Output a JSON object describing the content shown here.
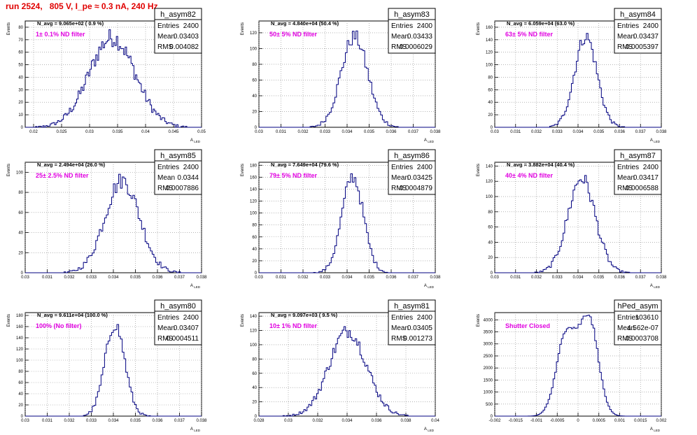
{
  "title": "run 2524,   805 V, I_pe ≈ 0.3 nA, 240 Hz",
  "chart_data": [
    {
      "type": "bar",
      "name": "h_asym82",
      "navg": "N_avg = 9.065e+02 ( 0.9 %)",
      "filter": "1± 0.1% ND filter",
      "stats": {
        "Entries": "2400",
        "Mean": "0.03403",
        "RMS": "0.004082"
      },
      "ylabel": "Events",
      "xlabel": "A_LED",
      "xlim": [
        0.0185,
        0.05
      ],
      "ylim": [
        0,
        85
      ],
      "xticks": [
        0.02,
        0.025,
        0.03,
        0.035,
        0.04,
        0.045,
        0.05
      ],
      "xticklabels": [
        "0.02",
        "0.025",
        "0.03",
        "0.035",
        "0.04",
        "0.045",
        "0.05"
      ],
      "yticks": [
        0,
        10,
        20,
        30,
        40,
        50,
        60,
        70,
        80
      ],
      "yticklabels": [
        "0",
        "10",
        "20",
        "30",
        "40",
        "50",
        "60",
        "70",
        "80"
      ],
      "mean": 0.03403,
      "sigma": 0.004082,
      "peak": 78,
      "bins": 120
    },
    {
      "type": "bar",
      "name": "h_asym83",
      "navg": "N_avg = 4.840e+04 (50.4 %)",
      "filter": "50± 5% ND filter",
      "stats": {
        "Entries": "2400",
        "Mean": "0.03433",
        "RMS": "0.0006029"
      },
      "ylabel": "Events",
      "xlabel": "A_LED",
      "xlim": [
        0.03,
        0.038
      ],
      "ylim": [
        0,
        135
      ],
      "xticks": [
        0.03,
        0.031,
        0.032,
        0.033,
        0.034,
        0.035,
        0.036,
        0.037,
        0.038
      ],
      "xticklabels": [
        "0.03",
        "0.031",
        "0.032",
        "0.033",
        "0.034",
        "0.035",
        "0.036",
        "0.037",
        "0.038"
      ],
      "yticks": [
        0,
        20,
        40,
        60,
        80,
        100,
        120
      ],
      "yticklabels": [
        "0",
        "20",
        "40",
        "60",
        "80",
        "100",
        "120"
      ],
      "mean": 0.03433,
      "sigma": 0.0006029,
      "peak": 125,
      "bins": 100
    },
    {
      "type": "bar",
      "name": "h_asym84",
      "navg": "N_avg = 6.059e+04 (63.0 %)",
      "filter": "63± 5% ND filter",
      "stats": {
        "Entries": "2400",
        "Mean": "0.03437",
        "RMS": "0.0005397"
      },
      "ylabel": "Events",
      "xlabel": "A_LED",
      "xlim": [
        0.03,
        0.038
      ],
      "ylim": [
        0,
        170
      ],
      "xticks": [
        0.03,
        0.031,
        0.032,
        0.033,
        0.034,
        0.035,
        0.036,
        0.037,
        0.038
      ],
      "xticklabels": [
        "0.03",
        "0.031",
        "0.032",
        "0.033",
        "0.034",
        "0.035",
        "0.036",
        "0.037",
        "0.038"
      ],
      "yticks": [
        0,
        20,
        40,
        60,
        80,
        100,
        120,
        140,
        160
      ],
      "yticklabels": [
        "0",
        "20",
        "40",
        "60",
        "80",
        "100",
        "120",
        "140",
        "160"
      ],
      "mean": 0.03437,
      "sigma": 0.0005397,
      "peak": 158,
      "bins": 100
    },
    {
      "type": "bar",
      "name": "h_asym85",
      "navg": "N_avg = 2.494e+04 (26.0 %)",
      "filter": "25± 2.5% ND filter",
      "stats": {
        "Entries": "2400",
        "Mean": "0.0344",
        "RMS": "0.0007886"
      },
      "ylabel": "Events",
      "xlabel": "A_LED",
      "xlim": [
        0.03,
        0.038
      ],
      "ylim": [
        0,
        110
      ],
      "xticks": [
        0.03,
        0.031,
        0.032,
        0.033,
        0.034,
        0.035,
        0.036,
        0.037,
        0.038
      ],
      "xticklabels": [
        "0.03",
        "0.031",
        "0.032",
        "0.033",
        "0.034",
        "0.035",
        "0.036",
        "0.037",
        "0.038"
      ],
      "yticks": [
        0,
        20,
        40,
        60,
        80,
        100
      ],
      "yticklabels": [
        "0",
        "20",
        "40",
        "60",
        "80",
        "100"
      ],
      "mean": 0.0344,
      "sigma": 0.0007886,
      "peak": 100,
      "bins": 100
    },
    {
      "type": "bar",
      "name": "h_asym86",
      "navg": "N_avg = 7.649e+04 (79.6 %)",
      "filter": "79± 5% ND filter",
      "stats": {
        "Entries": "2400",
        "Mean": "0.03425",
        "RMS": "0.0004879"
      },
      "ylabel": "Events",
      "xlabel": "A_LED",
      "xlim": [
        0.03,
        0.038
      ],
      "ylim": [
        0,
        185
      ],
      "xticks": [
        0.03,
        0.031,
        0.032,
        0.033,
        0.034,
        0.035,
        0.036,
        0.037,
        0.038
      ],
      "xticklabels": [
        "0.03",
        "0.031",
        "0.032",
        "0.033",
        "0.034",
        "0.035",
        "0.036",
        "0.037",
        "0.038"
      ],
      "yticks": [
        0,
        20,
        40,
        60,
        80,
        100,
        120,
        140,
        160,
        180
      ],
      "yticklabels": [
        "0",
        "20",
        "40",
        "60",
        "80",
        "100",
        "120",
        "140",
        "160",
        "180"
      ],
      "mean": 0.03425,
      "sigma": 0.0004879,
      "peak": 175,
      "bins": 100
    },
    {
      "type": "bar",
      "name": "h_asym87",
      "navg": "N_avg = 3.882e+04 (40.4 %)",
      "filter": "40± 4% ND filter",
      "stats": {
        "Entries": "2400",
        "Mean": "0.03417",
        "RMS": "0.0006588"
      },
      "ylabel": "Events",
      "xlabel": "A_LED",
      "xlim": [
        0.03,
        0.038
      ],
      "ylim": [
        0,
        145
      ],
      "xticks": [
        0.03,
        0.031,
        0.032,
        0.033,
        0.034,
        0.035,
        0.036,
        0.037,
        0.038
      ],
      "xticklabels": [
        "0.03",
        "0.031",
        "0.032",
        "0.033",
        "0.034",
        "0.035",
        "0.036",
        "0.037",
        "0.038"
      ],
      "yticks": [
        0,
        20,
        40,
        60,
        80,
        100,
        120,
        140
      ],
      "yticklabels": [
        "0",
        "20",
        "40",
        "60",
        "80",
        "100",
        "120",
        "140"
      ],
      "mean": 0.03417,
      "sigma": 0.0006588,
      "peak": 135,
      "bins": 100
    },
    {
      "type": "bar",
      "name": "h_asym80",
      "navg": "N_avg = 9.611e+04 (100.0 %)",
      "filter": "100% (No filter)",
      "stats": {
        "Entries": "2400",
        "Mean": "0.03407",
        "RMS": "0.0004511"
      },
      "ylabel": "Events",
      "xlabel": "A_LED",
      "xlim": [
        0.03,
        0.038
      ],
      "ylim": [
        0,
        185
      ],
      "xticks": [
        0.03,
        0.031,
        0.032,
        0.033,
        0.034,
        0.035,
        0.036,
        0.037,
        0.038
      ],
      "xticklabels": [
        "0.03",
        "0.031",
        "0.032",
        "0.033",
        "0.034",
        "0.035",
        "0.036",
        "0.037",
        "0.038"
      ],
      "yticks": [
        0,
        20,
        40,
        60,
        80,
        100,
        120,
        140,
        160,
        180
      ],
      "yticklabels": [
        "0",
        "20",
        "40",
        "60",
        "80",
        "100",
        "120",
        "140",
        "160",
        "180"
      ],
      "mean": 0.03407,
      "sigma": 0.0004511,
      "peak": 178,
      "bins": 100
    },
    {
      "type": "bar",
      "name": "h_asym81",
      "navg": "N_avg = 9.097e+03 ( 9.5 %)",
      "filter": "10± 1% ND filter",
      "stats": {
        "Entries": "2400",
        "Mean": "0.03405",
        "RMS": "0.001273"
      },
      "ylabel": "Events",
      "xlabel": "A_LED",
      "xlim": [
        0.028,
        0.04
      ],
      "ylim": [
        0,
        145
      ],
      "xticks": [
        0.028,
        0.03,
        0.032,
        0.034,
        0.036,
        0.038,
        0.04
      ],
      "xticklabels": [
        "0.028",
        "0.03",
        "0.032",
        "0.034",
        "0.036",
        "0.038",
        "0.04"
      ],
      "yticks": [
        0,
        20,
        40,
        60,
        80,
        100,
        120,
        140
      ],
      "yticklabels": [
        "0",
        "20",
        "40",
        "60",
        "80",
        "100",
        "120",
        "140"
      ],
      "mean": 0.03405,
      "sigma": 0.001273,
      "peak": 130,
      "bins": 110
    },
    {
      "type": "bar",
      "name": "hPed_asym",
      "navg": "",
      "filter": "Shutter Closed",
      "stats": {
        "Entries": "103610",
        "Mean": "4.562e-07",
        "RMS": "0.0003708"
      },
      "ylabel": "Events",
      "xlabel": "A_LED",
      "xlim": [
        -0.002,
        0.002
      ],
      "ylim": [
        0,
        4300
      ],
      "xticks": [
        -0.002,
        -0.0015,
        -0.001,
        -0.0005,
        0,
        0.0005,
        0.001,
        0.0015,
        0.002
      ],
      "xticklabels": [
        "-0.002",
        "-0.0015",
        "-0.001",
        "-0.0005",
        "0",
        "0.0005",
        "0.001",
        "0.0015",
        "0.002"
      ],
      "yticks": [
        0,
        500,
        1000,
        1500,
        2000,
        2500,
        3000,
        3500,
        4000
      ],
      "yticklabels": [
        "0",
        "500",
        "1000",
        "1500",
        "2000",
        "2500",
        "3000",
        "3500",
        "4000"
      ],
      "bimodal": true,
      "bins": 100
    }
  ]
}
